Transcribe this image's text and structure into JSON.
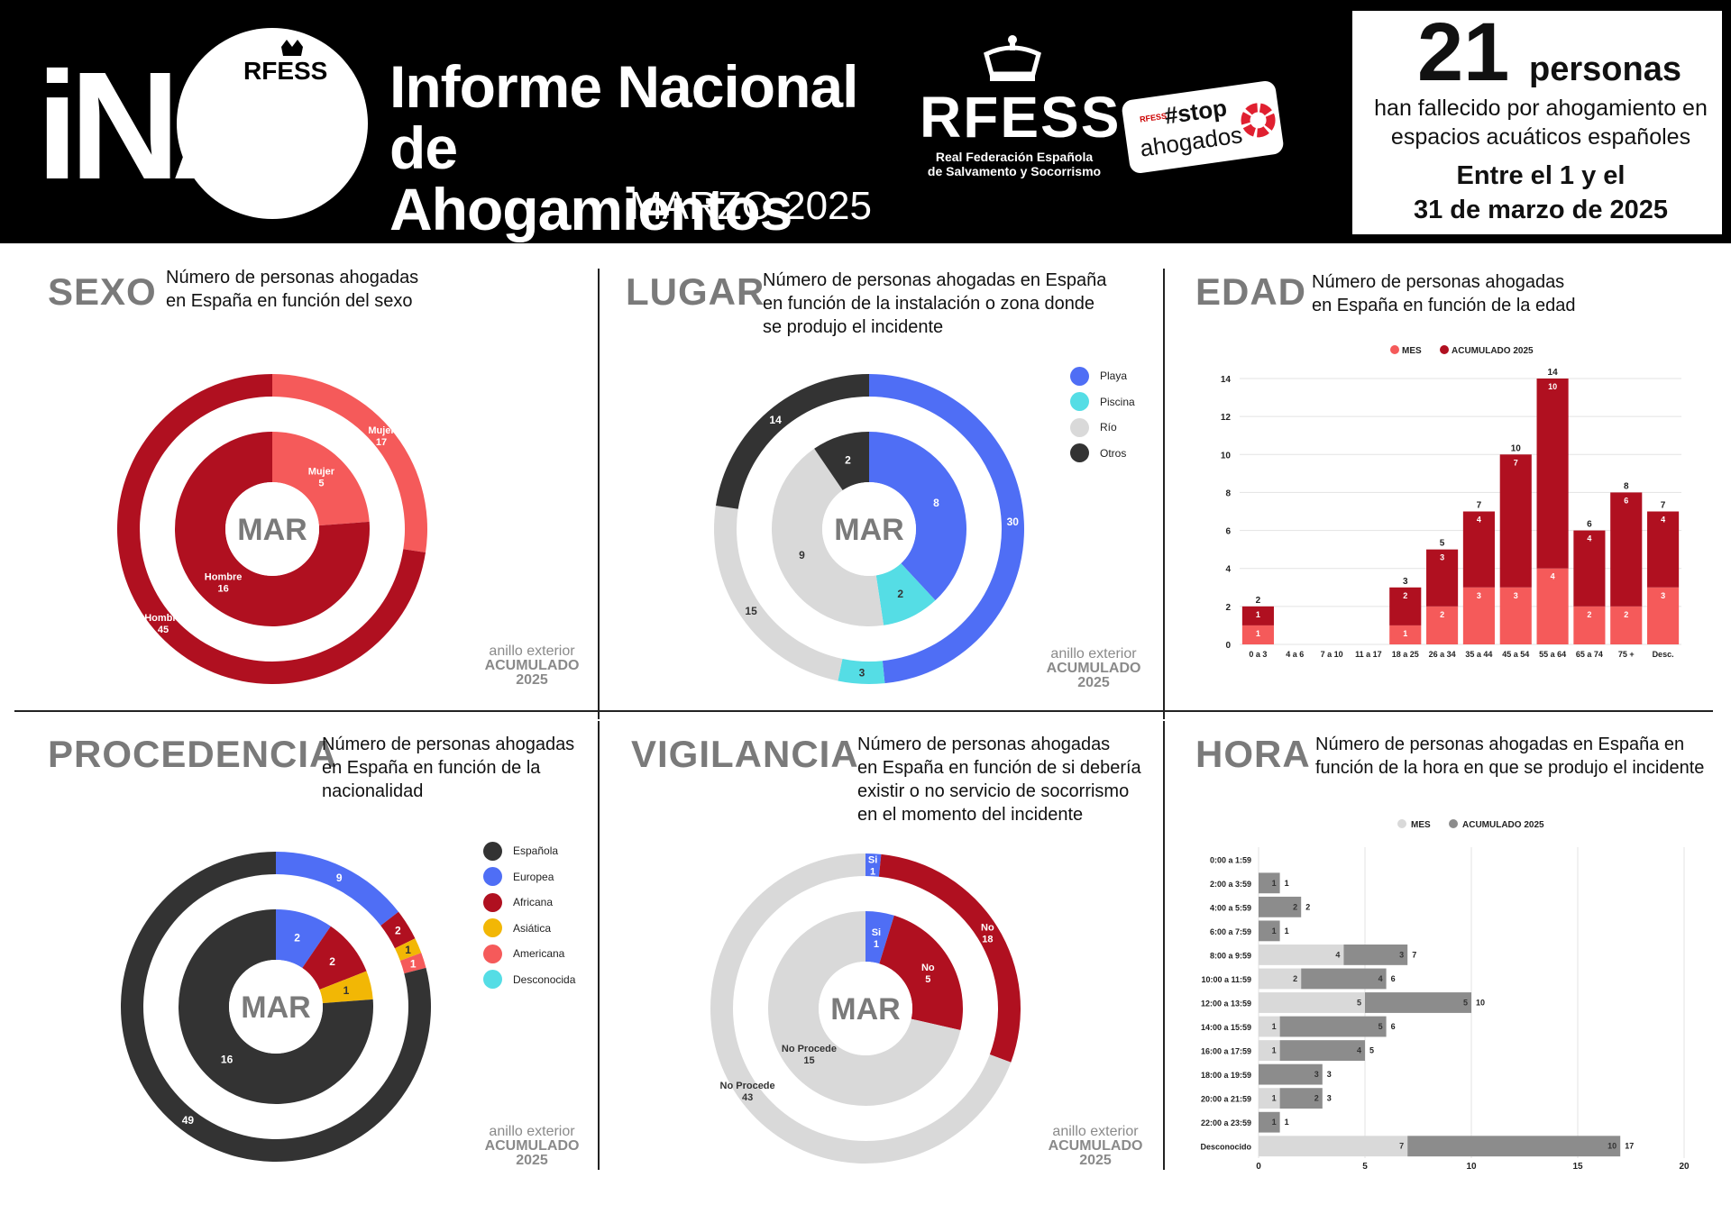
{
  "header": {
    "logo_text": "iNA",
    "logo_sub": "RFESS",
    "title_line1": "Informe Nacional",
    "title_line2": "de Ahogamientos",
    "month": "MARZO 2025",
    "rfess_text": "RFESS",
    "rfess_sub_line1": "Real Federación Española",
    "rfess_sub_line2": "de Salvamento y Socorrismo",
    "stop_small": "RFESS",
    "stop_word": "#stop",
    "stop_drowned": "ahogados"
  },
  "summary": {
    "count": "21",
    "unit": "personas",
    "text": "han fallecido por ahogamiento en espacios acuáticos españoles",
    "dates_line1": "Entre el 1 y el",
    "dates_line2": "31 de marzo de 2025"
  },
  "ring_note": {
    "line1": "anillo exterior",
    "line2": "ACUMULADO",
    "line3": "2025"
  },
  "colors": {
    "dark_red": "#b01020",
    "light_red": "#f55a5a",
    "blue": "#4f6ef5",
    "cyan": "#55dde5",
    "light_gray": "#d9d9d9",
    "dark_gray": "#333333",
    "yellow": "#f2b705",
    "mid_gray": "#8c8c8c"
  },
  "panels": {
    "sexo": {
      "title": "SEXO",
      "desc_line1": "Número de personas ahogadas",
      "desc_line2": "en España en función del sexo",
      "center": "MAR"
    },
    "lugar": {
      "title": "LUGAR",
      "desc_line1": "Número de personas ahogadas en España",
      "desc_line2": "en función de la instalación o zona donde",
      "desc_line3": "se produjo el incidente",
      "center": "MAR",
      "legend": [
        "Playa",
        "Piscina",
        "Río",
        "Otros"
      ]
    },
    "edad": {
      "title": "EDAD",
      "desc_line1": "Número de personas ahogadas",
      "desc_line2": "en España en función de la edad",
      "legend_mes": "MES",
      "legend_acum": "ACUMULADO 2025"
    },
    "procedencia": {
      "title": "PROCEDENCIA",
      "desc_line1": "Número de personas ahogadas",
      "desc_line2": "en España en función de la",
      "desc_line3": "nacionalidad",
      "center": "MAR",
      "legend": [
        "Española",
        "Europea",
        "Africana",
        "Asiática",
        "Americana",
        "Desconocida"
      ]
    },
    "vigilancia": {
      "title": "VIGILANCIA",
      "desc_line1": "Número de personas ahogadas",
      "desc_line2": "en España en función de si debería",
      "desc_line3": "existir o no servicio de socorrismo",
      "desc_line4": "en el momento del incidente",
      "center": "MAR"
    },
    "hora": {
      "title": "HORA",
      "desc_line1": "Número de personas ahogadas en España en",
      "desc_line2": "función de la hora en que se produjo el incidente",
      "legend_mes": "MES",
      "legend_acum": "ACUMULADO 2025"
    }
  },
  "chart_data": [
    {
      "id": "sexo",
      "type": "pie",
      "inner_ring": {
        "name": "MAR",
        "labels": [
          "Mujer",
          "Hombre"
        ],
        "values": [
          5,
          16
        ],
        "colors": [
          "#f55a5a",
          "#b01020"
        ]
      },
      "outer_ring": {
        "name": "ACUMULADO 2025",
        "labels": [
          "Mujer",
          "Hombre"
        ],
        "values": [
          17,
          45
        ],
        "colors": [
          "#f55a5a",
          "#b01020"
        ]
      }
    },
    {
      "id": "lugar",
      "type": "pie",
      "legend": [
        "Playa",
        "Piscina",
        "Río",
        "Otros"
      ],
      "inner_ring": {
        "name": "MAR",
        "labels": [
          "Playa",
          "Piscina",
          "Río",
          "Otros"
        ],
        "values": [
          8,
          2,
          9,
          2
        ],
        "colors": [
          "#4f6ef5",
          "#55dde5",
          "#d9d9d9",
          "#333333"
        ]
      },
      "outer_ring": {
        "name": "ACUMULADO 2025",
        "labels": [
          "Playa",
          "Piscina",
          "Río",
          "Otros"
        ],
        "values": [
          30,
          3,
          15,
          14
        ],
        "colors": [
          "#4f6ef5",
          "#55dde5",
          "#d9d9d9",
          "#333333"
        ]
      }
    },
    {
      "id": "edad",
      "type": "bar",
      "stacked": true,
      "categories": [
        "0 a 3",
        "4 a 6",
        "7 a 10",
        "11 a 17",
        "18 a 25",
        "26 a 34",
        "35 a 44",
        "45 a 54",
        "55 a 64",
        "65 a 74",
        "75 +",
        "Desc."
      ],
      "series": [
        {
          "name": "MES",
          "values": [
            1,
            0,
            0,
            0,
            1,
            2,
            3,
            3,
            4,
            2,
            2,
            3
          ],
          "color": "#f55a5a"
        },
        {
          "name": "ACUMULADO 2025",
          "values": [
            1,
            0,
            0,
            0,
            2,
            3,
            4,
            7,
            10,
            4,
            6,
            4
          ],
          "color": "#b01020"
        }
      ],
      "totals": [
        2,
        0,
        0,
        0,
        3,
        5,
        7,
        10,
        14,
        6,
        8,
        7
      ],
      "y_ticks": [
        0,
        2,
        4,
        6,
        8,
        10,
        12,
        14
      ],
      "ylim": [
        0,
        14
      ],
      "grid": true,
      "legend_position": "top"
    },
    {
      "id": "procedencia",
      "type": "pie",
      "legend": [
        "Española",
        "Europea",
        "Africana",
        "Asiática",
        "Americana",
        "Desconocida"
      ],
      "inner_ring": {
        "name": "MAR",
        "labels": [
          "Europea",
          "Africana",
          "Asiática",
          "Española"
        ],
        "values": [
          2,
          2,
          1,
          16
        ],
        "colors": [
          "#4f6ef5",
          "#b01020",
          "#f2b705",
          "#333333"
        ]
      },
      "outer_ring": {
        "name": "ACUMULADO 2025",
        "labels": [
          "Europea",
          "Africana",
          "Asiática",
          "Americana",
          "Española"
        ],
        "values": [
          9,
          2,
          1,
          1,
          49
        ],
        "colors": [
          "#4f6ef5",
          "#b01020",
          "#f2b705",
          "#f55a5a",
          "#333333"
        ]
      }
    },
    {
      "id": "vigilancia",
      "type": "pie",
      "inner_ring": {
        "name": "MAR",
        "labels": [
          "Si",
          "No",
          "No Procede"
        ],
        "values": [
          1,
          5,
          15
        ],
        "colors": [
          "#4f6ef5",
          "#b01020",
          "#d9d9d9"
        ]
      },
      "outer_ring": {
        "name": "ACUMULADO 2025",
        "labels": [
          "Si",
          "No",
          "No Procede"
        ],
        "values": [
          1,
          18,
          43
        ],
        "colors": [
          "#4f6ef5",
          "#b01020",
          "#d9d9d9"
        ]
      }
    },
    {
      "id": "hora",
      "type": "bar",
      "orientation": "horizontal",
      "stacked": true,
      "categories": [
        "0:00 a 1:59",
        "2:00 a 3:59",
        "4:00 a 5:59",
        "6:00 a 7:59",
        "8:00 a 9:59",
        "10:00 a 11:59",
        "12:00 a 13:59",
        "14:00 a 15:59",
        "16:00 a 17:59",
        "18:00 a 19:59",
        "20:00 a 21:59",
        "22:00 a 23:59",
        "Desconocido"
      ],
      "series": [
        {
          "name": "MES",
          "values": [
            0,
            0,
            0,
            0,
            4,
            2,
            5,
            1,
            1,
            0,
            1,
            0,
            7
          ],
          "color": "#d9d9d9"
        },
        {
          "name": "ACUMULADO 2025",
          "values": [
            0,
            1,
            2,
            1,
            3,
            4,
            5,
            5,
            4,
            3,
            2,
            1,
            10
          ],
          "color": "#8c8c8c"
        }
      ],
      "totals": [
        0,
        1,
        2,
        1,
        7,
        6,
        10,
        6,
        5,
        3,
        3,
        1,
        17
      ],
      "x_ticks": [
        0,
        5,
        10,
        15,
        20
      ],
      "xlim": [
        0,
        20
      ],
      "grid": true,
      "legend_position": "top"
    }
  ]
}
